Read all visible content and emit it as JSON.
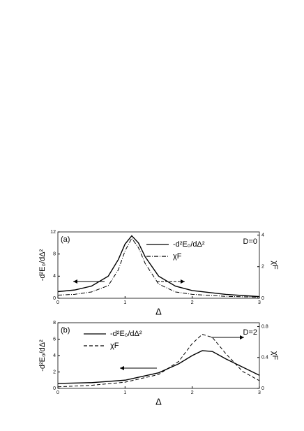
{
  "chart_data": [
    {
      "type": "line",
      "annotation": "(a)",
      "subtitle": "D=0",
      "xlabel": "Δ",
      "ylabel": "-d²E₀/dΔ²",
      "y2label": "χF",
      "xlim": [
        0,
        3
      ],
      "xticks": [
        0,
        1,
        2,
        3
      ],
      "ylim": [
        0,
        12
      ],
      "yticks": [
        0,
        4,
        8,
        12
      ],
      "y2lim": [
        0,
        4.2
      ],
      "y2ticks": [
        0,
        2,
        4
      ],
      "x": [
        0,
        0.25,
        0.5,
        0.75,
        0.9,
        1.0,
        1.1,
        1.2,
        1.3,
        1.5,
        1.75,
        2,
        2.5,
        3
      ],
      "series": [
        {
          "name": "-d²E₀/dΔ²",
          "color": "#000000",
          "style": "solid",
          "values": [
            1.2,
            1.5,
            2.2,
            4.0,
            7.0,
            9.8,
            11.3,
            10.0,
            7.5,
            4.0,
            2.2,
            1.4,
            0.7,
            0.3
          ]
        },
        {
          "name": "χF",
          "color": "#000000",
          "style": "dashdot",
          "axis": "y2",
          "values": [
            0.2,
            0.25,
            0.4,
            0.8,
            1.8,
            3.0,
            3.8,
            3.2,
            2.2,
            0.9,
            0.4,
            0.25,
            0.12,
            0.07
          ]
        }
      ]
    },
    {
      "type": "line",
      "annotation": "(b)",
      "subtitle": "D=2",
      "xlabel": "Δ",
      "ylabel": "-d²E₀/dΔ²",
      "y2label": "χF",
      "xlim": [
        0,
        3
      ],
      "xticks": [
        0,
        1,
        2,
        3
      ],
      "ylim": [
        0,
        8
      ],
      "yticks": [
        0,
        2,
        4,
        6,
        8
      ],
      "y2lim": [
        0,
        0.85
      ],
      "y2ticks": [
        0,
        0.4,
        0.8
      ],
      "x": [
        0,
        0.5,
        1,
        1.5,
        1.8,
        2,
        2.15,
        2.3,
        2.5,
        2.75,
        3
      ],
      "series": [
        {
          "name": "-d²E₀/dΔ²",
          "color": "#000000",
          "style": "solid",
          "values": [
            0.6,
            0.7,
            1.0,
            1.9,
            3.0,
            4.0,
            4.6,
            4.5,
            3.6,
            2.6,
            1.6
          ]
        },
        {
          "name": "χF",
          "color": "#000000",
          "style": "dashed",
          "axis": "y2",
          "values": [
            0.02,
            0.04,
            0.08,
            0.18,
            0.35,
            0.58,
            0.7,
            0.66,
            0.45,
            0.22,
            0.1
          ]
        }
      ]
    }
  ]
}
